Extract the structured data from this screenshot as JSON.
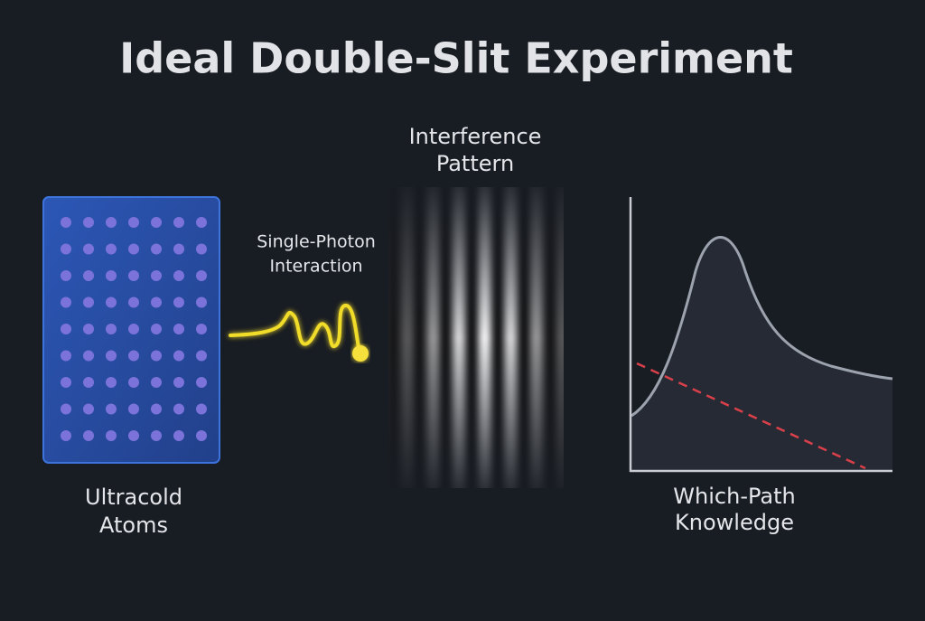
{
  "title": "Ideal Double-Slit Experiment",
  "atoms": {
    "label": [
      "Ultracold",
      "Atoms"
    ]
  },
  "photon": {
    "label": [
      "Single-Photon",
      "Interaction"
    ]
  },
  "pattern": {
    "label": [
      "Interference",
      "Pattern"
    ]
  },
  "knowledge": {
    "label": [
      "Which-Path",
      "Knowledge"
    ]
  }
}
